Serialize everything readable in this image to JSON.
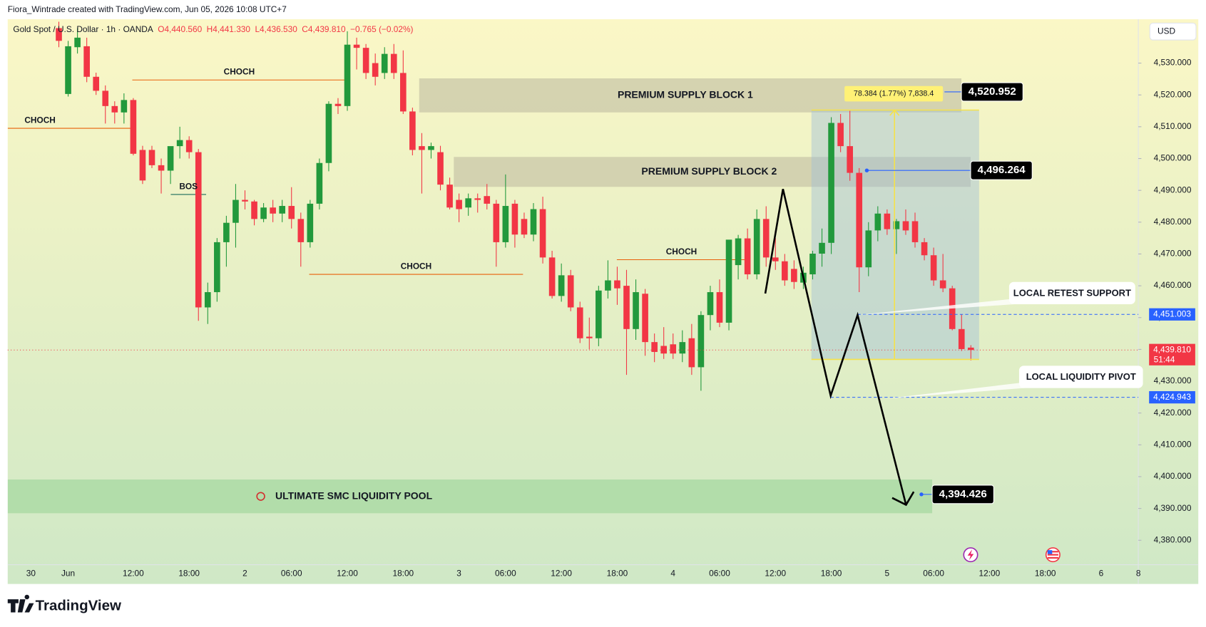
{
  "credit": "Fiora_Wintrade created with TradingView.com, Jun 05, 2026 10:08 UTC+7",
  "brand": "TradingView",
  "chart_data": {
    "type": "candlestick",
    "title": "Gold Spot / U.S. Dollar · 1h · OANDA",
    "legend_ohlc": [
      "O4,440.560",
      "H4,441.330",
      "L4,436.530",
      "C4,439.810"
    ],
    "change": "−0.765 (−0.02%)",
    "currency": "USD",
    "countdown": "51:44",
    "up_color": "#22993c",
    "down_color": "#f23645",
    "ylim": [
      4372.3,
      4543.8
    ],
    "yticks": [
      {
        "value": 4380,
        "label": "4,380.000"
      },
      {
        "value": 4390,
        "label": "4,390.000"
      },
      {
        "value": 4400,
        "label": "4,400.000"
      },
      {
        "value": 4410,
        "label": "4,410.000"
      },
      {
        "value": 4420,
        "label": "4,420.000"
      },
      {
        "value": 4430,
        "label": "4,430.000"
      },
      {
        "value": 4440,
        "label": "4,440.000"
      },
      {
        "value": 4450,
        "label": "4,450.000"
      },
      {
        "value": 4460,
        "label": "4,460.000"
      },
      {
        "value": 4470,
        "label": "4,470.000"
      },
      {
        "value": 4480,
        "label": "4,480.000"
      },
      {
        "value": 4490,
        "label": "4,490.000"
      },
      {
        "value": 4500,
        "label": "4,500.000"
      },
      {
        "value": 4510,
        "label": "4,510.000"
      },
      {
        "value": 4520,
        "label": "4,520.000"
      },
      {
        "value": 4530,
        "label": "4,530.000"
      }
    ],
    "categories": [
      null,
      null,
      "30",
      null,
      null,
      null,
      "Jun",
      null,
      null,
      null,
      null,
      null,
      null,
      "12:00",
      null,
      null,
      null,
      null,
      null,
      "18:00",
      null,
      null,
      null,
      null,
      null,
      "2",
      null,
      null,
      null,
      null,
      "06:00",
      null,
      null,
      null,
      null,
      null,
      "12:00",
      null,
      null,
      null,
      null,
      null,
      "18:00",
      null,
      null,
      null,
      null,
      null,
      "3",
      null,
      null,
      null,
      null,
      "06:00",
      null,
      null,
      null,
      null,
      null,
      "12:00",
      null,
      null,
      null,
      null,
      null,
      "18:00",
      null,
      null,
      null,
      null,
      null,
      "4",
      null,
      null,
      null,
      null,
      "06:00",
      null,
      null,
      null,
      null,
      null,
      "12:00",
      null,
      null,
      null,
      null,
      null,
      "18:00",
      null,
      null,
      null,
      null,
      null,
      "5",
      null,
      null,
      null,
      null,
      "06:00",
      null,
      null,
      null,
      null,
      null,
      "12:00",
      null,
      null,
      null,
      null,
      null,
      "18:00",
      null,
      null,
      null,
      null,
      null,
      "6",
      null,
      null,
      null,
      "8"
    ],
    "candles": [
      null,
      null,
      null,
      null,
      null,
      [
        4541,
        4543,
        4535,
        4537
      ],
      [
        4520.3,
        4537,
        4519.5,
        4535.3
      ],
      [
        4535,
        4541,
        4533,
        4538
      ],
      [
        4535.3,
        4538,
        4524,
        4525.7
      ],
      [
        4525.7,
        4527,
        4520,
        4521.3
      ],
      [
        4521.3,
        4523,
        4511,
        4516.5
      ],
      [
        4516.5,
        4518,
        4511,
        4514.5
      ],
      [
        4514.5,
        4520.5,
        4511,
        4518.4
      ],
      [
        4518.4,
        4519,
        4501,
        4501.5
      ],
      [
        4502.7,
        4504,
        4492,
        4493.1
      ],
      [
        4502.7,
        4504,
        4497,
        4497.9
      ],
      [
        4497.9,
        4500,
        4489,
        4496.2
      ],
      [
        4496.2,
        4503,
        4492,
        4503.9
      ],
      [
        4503.9,
        4510,
        4500,
        4505.8
      ],
      [
        4505.8,
        4507,
        4500,
        4502.0
      ],
      [
        4502.0,
        4503,
        4449,
        4453.2
      ],
      [
        4453.2,
        4461,
        4448,
        4458.0
      ],
      [
        4458,
        4475,
        4455,
        4473.7
      ],
      [
        4473.7,
        4482,
        4466,
        4479.8
      ],
      [
        4479.8,
        4492,
        4472,
        4487.0
      ],
      [
        4487,
        4490,
        4484,
        4486.5
      ],
      [
        4486.5,
        4487,
        4479,
        4481
      ],
      [
        4481,
        4486,
        4480,
        4484.6
      ],
      [
        4484.6,
        4487,
        4480,
        4482.7
      ],
      [
        4482.7,
        4487,
        4480,
        4485.1
      ],
      [
        4485.1,
        4491,
        4478,
        4481
      ],
      [
        4481,
        4483,
        4466,
        4473.7
      ],
      [
        4473.7,
        4487,
        4472,
        4485.8
      ],
      [
        4485.8,
        4500,
        4484,
        4498.6
      ],
      [
        4498.6,
        4518,
        4496,
        4517.2
      ],
      [
        4517.2,
        4519,
        4514,
        4516.5
      ],
      [
        4516.5,
        4540,
        4515,
        4535.8
      ],
      [
        4535.8,
        4538,
        4528,
        4534.8
      ],
      [
        4534.8,
        4536,
        4525,
        4526.9
      ],
      [
        4530,
        4533,
        4523,
        4525.7
      ],
      [
        4526.9,
        4535,
        4525,
        4532.9
      ],
      [
        4532.9,
        4536,
        4525,
        4526.9
      ],
      [
        4526.9,
        4534,
        4514,
        4514.8
      ],
      [
        4514.8,
        4516,
        4501,
        4502.7
      ],
      [
        4503.9,
        4508,
        4489,
        4502.7
      ],
      [
        4502.7,
        4505,
        4500,
        4503.9
      ],
      [
        4502,
        4504,
        4490,
        4491.8
      ],
      [
        4491.8,
        4494,
        4484,
        4484.6
      ],
      [
        4487,
        4489,
        4480,
        4484.1
      ],
      [
        4484.6,
        4489,
        4482,
        4487.5
      ],
      [
        4487.5,
        4489,
        4483,
        4487.0
      ],
      [
        4488.2,
        4492,
        4484,
        4485.8
      ],
      [
        4485.8,
        4487,
        4466,
        4473.7
      ],
      [
        4473.7,
        4495,
        4472,
        4485.1
      ],
      [
        4485.8,
        4487,
        4472,
        4476.1
      ],
      [
        4481,
        4483,
        4475,
        4476.1
      ],
      [
        4476.1,
        4486,
        4474,
        4484.1
      ],
      [
        4484.1,
        4488,
        4467,
        4468.9
      ],
      [
        4468.9,
        4471,
        4456,
        4456.8
      ],
      [
        4456.8,
        4467,
        4455,
        4463.3
      ],
      [
        4463.3,
        4465,
        4452,
        4453.2
      ],
      [
        4453.2,
        4455,
        4442,
        4443.5
      ],
      [
        4444,
        4450,
        4440,
        4443.5
      ],
      [
        4443.5,
        4460,
        4441,
        4458.5
      ],
      [
        4458.5,
        4468,
        4456,
        4461.7
      ],
      [
        4461.7,
        4466,
        4454,
        4459.2
      ],
      [
        4460,
        4465,
        4432,
        4446.4
      ],
      [
        4446.4,
        4462,
        4443,
        4458
      ],
      [
        4457.5,
        4459,
        4438,
        4442.3
      ],
      [
        4442.3,
        4445,
        4436,
        4439.2
      ],
      [
        4441.1,
        4447,
        4437,
        4438.7
      ],
      [
        4441.6,
        4445,
        4437,
        4438.7
      ],
      [
        4438.7,
        4446,
        4436,
        4442.3
      ],
      [
        4443.5,
        4448,
        4432,
        4434.4
      ],
      [
        4434.4,
        4452,
        4427,
        4450.8
      ],
      [
        4450.8,
        4460,
        4446,
        4458.0
      ],
      [
        4458,
        4462,
        4447,
        4448.4
      ],
      [
        4448.4,
        4474,
        4446,
        4474.5
      ],
      [
        4466.5,
        4476,
        4462,
        4474.9
      ],
      [
        4474.9,
        4478,
        4462,
        4463.6
      ],
      [
        4463.6,
        4484,
        4462,
        4481
      ],
      [
        4481,
        4485,
        4466,
        4468.9
      ],
      [
        4468.9,
        4475,
        4465,
        4467.7
      ],
      [
        4467.7,
        4470,
        4460,
        4461.7
      ],
      [
        4465.3,
        4468,
        4459,
        4461.2
      ],
      [
        4461,
        4466,
        4459,
        4464.1
      ],
      [
        4463.6,
        4471,
        4462,
        4470.1
      ],
      [
        4470.1,
        4478,
        4466,
        4473.5
      ],
      [
        4473.5,
        4513,
        4470,
        4511.2
      ],
      [
        4511.2,
        4514,
        4502,
        4503.9
      ],
      [
        4503.9,
        4515,
        4493,
        4495.5
      ],
      [
        4495.5,
        4497,
        4458,
        4465.8
      ],
      [
        4465.8,
        4480,
        4463,
        4477.4
      ],
      [
        4477.4,
        4485,
        4474,
        4482.7
      ],
      [
        4482.7,
        4484,
        4476,
        4477.8
      ],
      [
        4477.8,
        4481,
        4470,
        4480.3
      ],
      [
        4480.3,
        4484,
        4476,
        4477.4
      ],
      [
        4480.3,
        4483,
        4472,
        4473.7
      ],
      [
        4473.7,
        4475,
        4468,
        4469.6
      ],
      [
        4469.6,
        4472,
        4460,
        4461.7
      ],
      [
        4461.7,
        4470,
        4458,
        4459.2
      ],
      [
        4459.2,
        4460,
        4446,
        4446.4
      ],
      [
        4446.4,
        4451,
        4439.5,
        4440.1
      ],
      [
        4440.56,
        4441.33,
        4436.53,
        4439.81
      ],
      null,
      null,
      null,
      null,
      null,
      null,
      null,
      null,
      null,
      null,
      null,
      null,
      null,
      null,
      null,
      null,
      null,
      null
    ],
    "zones": [
      {
        "label": "PREMIUM SUPPLY BLOCK 1",
        "top": 4525.2,
        "bottom": 4514.5,
        "color": "#c9c7a8"
      },
      {
        "label": "PREMIUM SUPPLY BLOCK 2",
        "top": 4500.5,
        "bottom": 4491.1,
        "color": "#c9c7a8"
      },
      {
        "label": "ULTIMATE SMC LIQUIDITY POOL",
        "top": 4399.1,
        "bottom": 4388.5,
        "color": "#a6d8a0"
      }
    ],
    "levels": [
      {
        "label": "CHOCH",
        "value": 4509.5,
        "color": "#e8600a"
      },
      {
        "label": "CHOCH",
        "value": 4524.7,
        "color": "#e8600a"
      },
      {
        "label": "BOS",
        "value": 4488.7,
        "color": "#1b6b5a"
      },
      {
        "label": "CHOCH",
        "value": 4463.6,
        "color": "#e8600a"
      },
      {
        "label": "CHOCH",
        "value": 4468.2,
        "color": "#e8600a"
      }
    ],
    "measure": {
      "label": "78.384 (1.77%) 7,838.4",
      "top": 4515.234,
      "bottom": 4436.85
    },
    "price_labels": [
      {
        "value": 4520.952,
        "label": "4,520.952",
        "color": "#000000"
      },
      {
        "value": 4496.264,
        "label": "4,496.264",
        "color": "#000000"
      },
      {
        "value": 4451.003,
        "label": "4,451.003",
        "color": "#2962ff"
      },
      {
        "value": 4439.81,
        "label": "4,439.810",
        "color": "#f23645"
      },
      {
        "value": 4424.943,
        "label": "4,424.943",
        "color": "#2962ff"
      },
      {
        "value": 4394.426,
        "label": "4,394.426",
        "color": "#000000"
      }
    ],
    "annotations": [
      "LOCAL RETEST SUPPORT",
      "LOCAL LIQUIDITY PIVOT"
    ]
  }
}
